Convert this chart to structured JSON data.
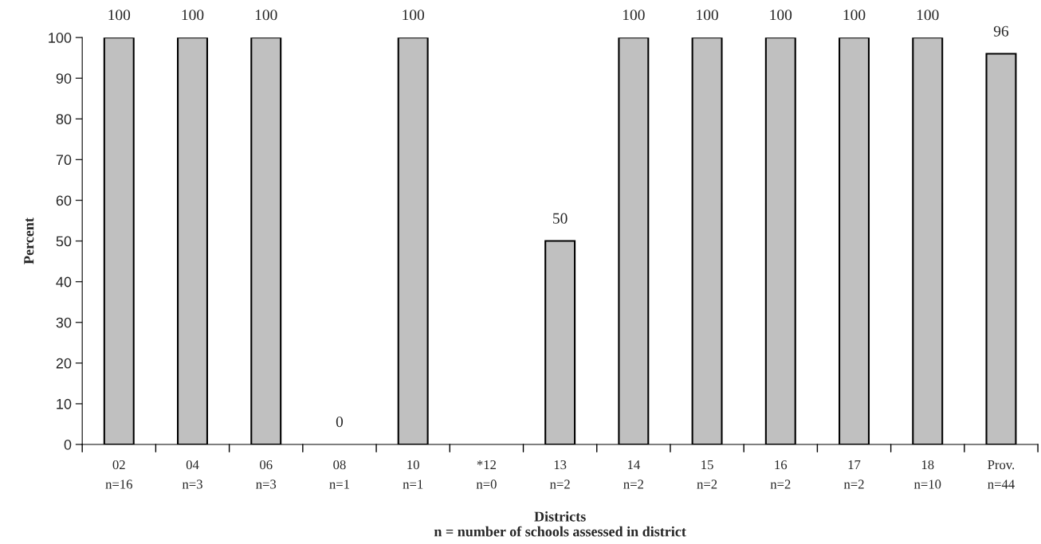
{
  "chart_data": {
    "type": "bar",
    "categories": [
      "02\nn=16",
      "04\nn=3",
      "06\nn=3",
      "08\nn=1",
      "10\nn=1",
      "*12\nn=0",
      "13\nn=2",
      "14\nn=2",
      "15\nn=2",
      "16\nn=2",
      "17\nn=2",
      "18\nn=10",
      "Prov.\nn=44"
    ],
    "values": [
      100,
      100,
      100,
      0,
      100,
      null,
      50,
      100,
      100,
      100,
      100,
      100,
      96
    ],
    "value_labels": [
      "100",
      "100",
      "100",
      "0",
      "100",
      null,
      "50",
      "100",
      "100",
      "100",
      "100",
      "100",
      "96"
    ],
    "color": "#c0c0c0",
    "xlabel": "Districts\nn = number of schools assessed in district",
    "ylabel": "Percent",
    "ylim": [
      0,
      100
    ],
    "yticks": [
      0,
      10,
      20,
      30,
      40,
      50,
      60,
      70,
      80,
      90,
      100
    ],
    "grid": false,
    "legend": false
  }
}
